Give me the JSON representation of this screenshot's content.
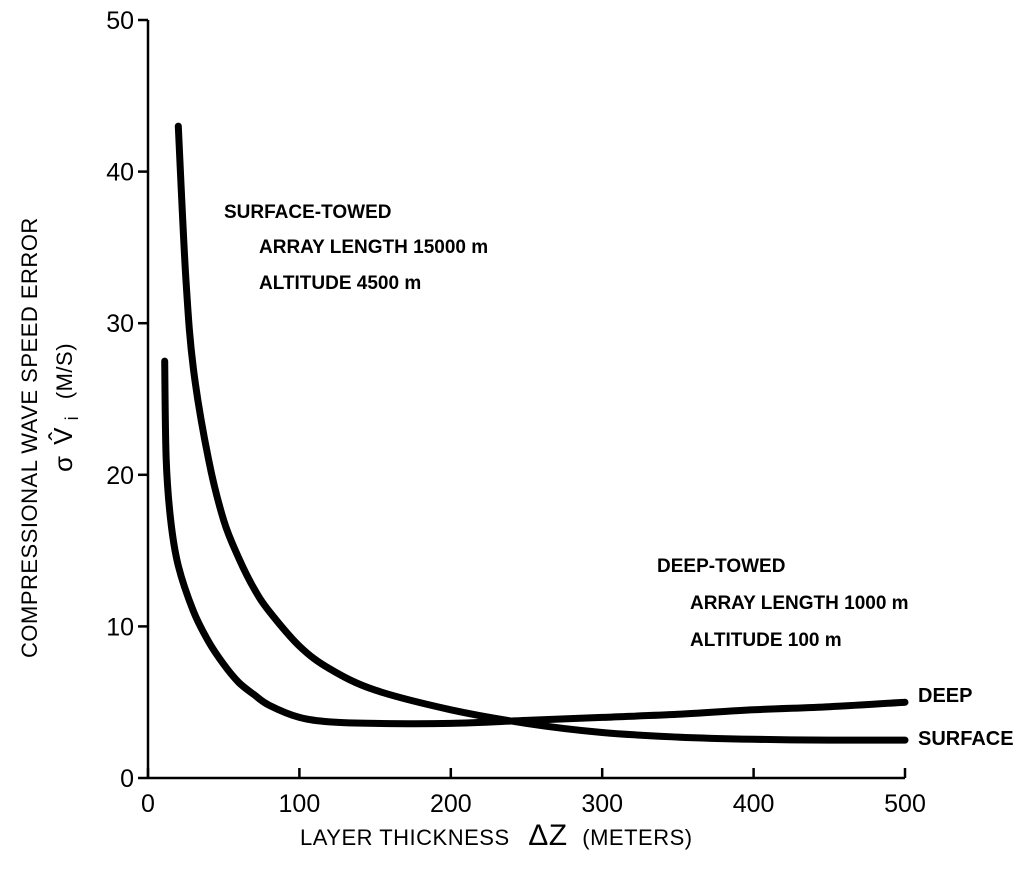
{
  "chart_data": {
    "type": "line",
    "xlabel": "LAYER THICKNESS",
    "xlabel_symbol": "ΔZ",
    "xlabel_units": "(METERS)",
    "ylabel_line1": "COMPRESSIONAL WAVE SPEED ERROR",
    "ylabel_line2_symbol": "σ",
    "ylabel_line2_var": "V̂",
    "ylabel_line2_sub": "i",
    "ylabel_line2_units": "(M/S)",
    "xlim": [
      0,
      500
    ],
    "ylim": [
      0,
      50
    ],
    "xticks": [
      "0",
      "100",
      "200",
      "300",
      "400",
      "500"
    ],
    "yticks": [
      "0",
      "10",
      "20",
      "30",
      "40",
      "50"
    ],
    "grid": false,
    "series": [
      {
        "name": "SURFACE",
        "x": [
          20,
          25,
          30,
          40,
          50,
          60,
          70,
          80,
          100,
          120,
          150,
          200,
          250,
          300,
          350,
          400,
          450,
          500
        ],
        "y": [
          43,
          33,
          27,
          21,
          17,
          14.5,
          12.5,
          11,
          8.7,
          7.2,
          5.8,
          4.5,
          3.6,
          3.0,
          2.7,
          2.55,
          2.5,
          2.5
        ]
      },
      {
        "name": "DEEP",
        "x": [
          11,
          12,
          15,
          20,
          30,
          40,
          50,
          60,
          70,
          80,
          100,
          120,
          150,
          200,
          250,
          300,
          350,
          400,
          450,
          500
        ],
        "y": [
          27.5,
          21,
          17,
          14,
          11,
          9,
          7.5,
          6.3,
          5.5,
          4.8,
          4.0,
          3.7,
          3.6,
          3.6,
          3.8,
          4.0,
          4.2,
          4.5,
          4.7,
          5.0
        ]
      }
    ],
    "annotations": [
      {
        "heading": "SURFACE-TOWED",
        "line1": "ARRAY LENGTH 15000 m",
        "line2": "ALTITUDE 4500 m"
      },
      {
        "heading": "DEEP-TOWED",
        "line1": "ARRAY LENGTH  1000 m",
        "line2": "ALTITUDE  100 m"
      }
    ]
  }
}
